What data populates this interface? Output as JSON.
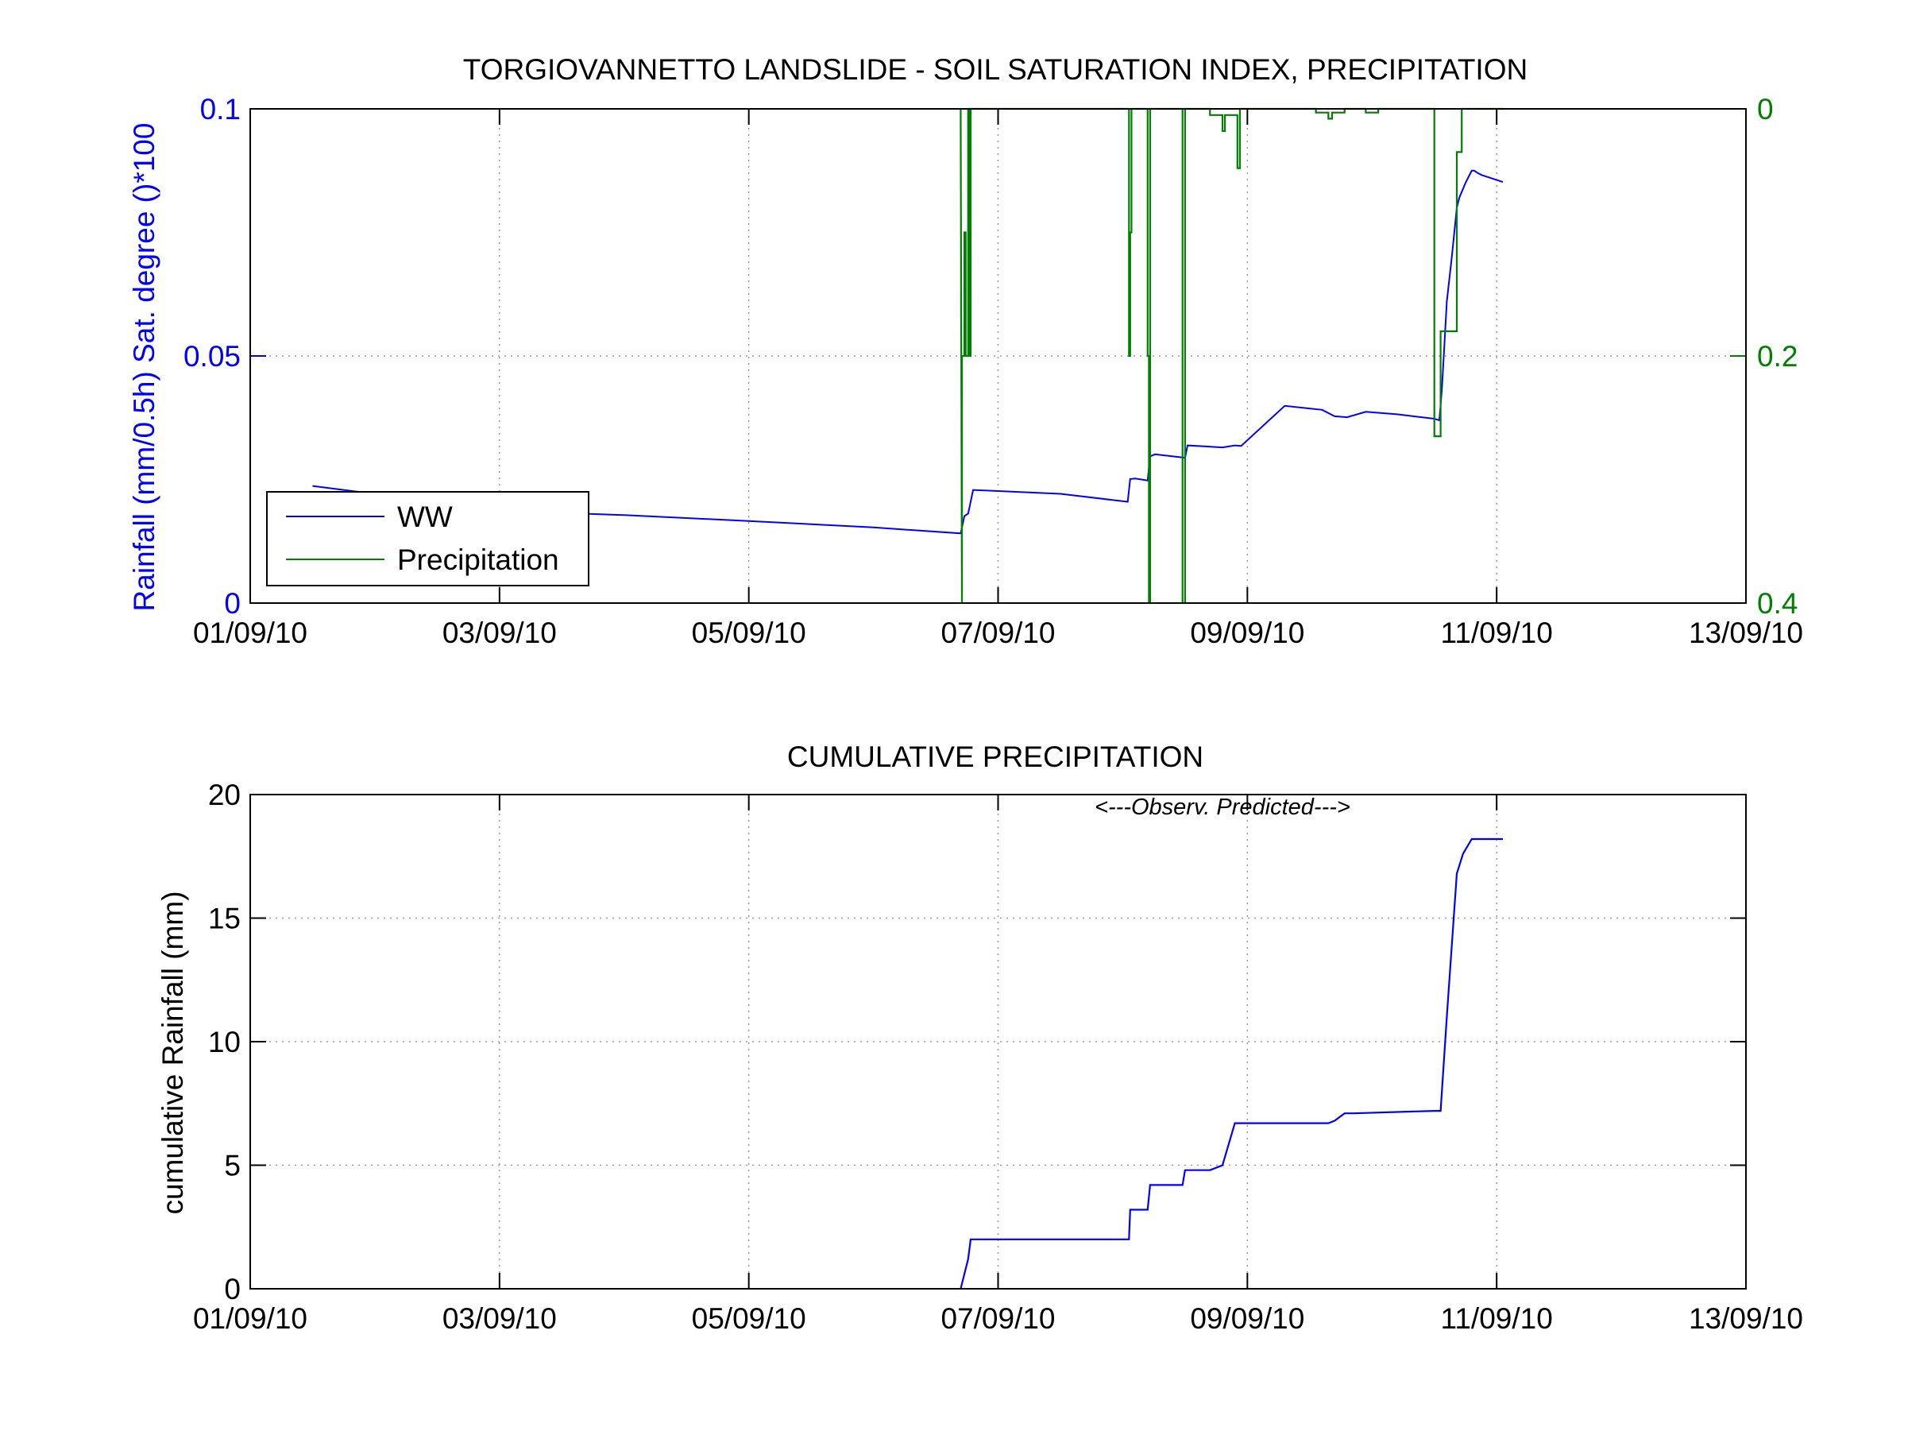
{
  "colors": {
    "ww": "#0000ff",
    "precipitation": "#007f00",
    "axis": "#000000"
  },
  "chart_data": [
    {
      "type": "line",
      "title": "TORGIOVANNETTO LANDSLIDE - SOIL SATURATION INDEX, PRECIPITATION",
      "xlabel": "",
      "ylabel": "Rainfall (mm/0.5h) Sat. degree ()*100",
      "xlim": [
        0,
        12
      ],
      "x_ticks": [
        "01/09/10",
        "03/09/10",
        "05/09/10",
        "07/09/10",
        "09/09/10",
        "11/09/10",
        "13/09/10"
      ],
      "x_tick_days": [
        0,
        2,
        4,
        6,
        8,
        10,
        12
      ],
      "y_ticks_left": [
        "0",
        "0.05",
        "0.1"
      ],
      "ylim_left": [
        0,
        0.1
      ],
      "y_ticks_right": [
        "0",
        "0.2",
        "0.4"
      ],
      "ylim_right": [
        0.4,
        0
      ],
      "grid": true,
      "legend": {
        "location": "lower-left",
        "entries": [
          "WW",
          "Precipitation"
        ]
      },
      "series": [
        {
          "name": "WW",
          "axis": "left",
          "x": [
            0.5,
            1.4,
            2.0,
            3.0,
            4.0,
            5.0,
            5.7,
            5.73,
            5.76,
            5.8,
            6.5,
            7.04,
            7.06,
            7.1,
            7.2,
            7.22,
            7.26,
            7.5,
            7.52,
            7.8,
            7.9,
            7.95,
            8.3,
            8.6,
            8.7,
            8.8,
            8.95,
            9.2,
            9.3,
            9.5,
            9.54,
            9.56,
            9.58,
            9.6,
            9.64,
            9.68,
            9.7,
            9.75,
            9.8,
            9.82,
            9.85,
            9.88,
            10.05
          ],
          "y": [
            0.0237,
            0.0208,
            0.0187,
            0.0178,
            0.0166,
            0.0153,
            0.0141,
            0.0176,
            0.0181,
            0.0229,
            0.0221,
            0.0205,
            0.0251,
            0.0252,
            0.0248,
            0.0297,
            0.0301,
            0.0294,
            0.0319,
            0.0315,
            0.0319,
            0.0318,
            0.0399,
            0.0391,
            0.0378,
            0.0376,
            0.0387,
            0.0382,
            0.0379,
            0.0373,
            0.037,
            0.043,
            0.052,
            0.061,
            0.07,
            0.08,
            0.082,
            0.085,
            0.0875,
            0.0875,
            0.087,
            0.0866,
            0.0852
          ]
        },
        {
          "name": "Precipitation",
          "axis": "right",
          "x": [
            5.7,
            5.71,
            5.71,
            5.73,
            5.73,
            5.74,
            5.74,
            5.76,
            5.76,
            5.77,
            5.77,
            5.78,
            5.78,
            7.05,
            7.05,
            7.06,
            7.06,
            7.07,
            7.07,
            7.2,
            7.2,
            7.21,
            7.21,
            7.22,
            7.22,
            7.48,
            7.48,
            7.5,
            7.5,
            7.7,
            7.7,
            7.8,
            7.8,
            7.82,
            7.82,
            7.92,
            7.92,
            7.94,
            7.94,
            8.55,
            8.55,
            8.65,
            8.65,
            8.68,
            8.68,
            8.78,
            8.78,
            8.95,
            8.95,
            9.05,
            9.05,
            9.5,
            9.5,
            9.55,
            9.55,
            9.68,
            9.68,
            9.72,
            9.72,
            9.78,
            9.78,
            9.9,
            9.9,
            10.05
          ],
          "y": [
            0,
            0.4,
            0.2,
            0.2,
            0.1,
            0.1,
            0.2,
            0.2,
            0,
            0,
            0.2,
            0.2,
            0,
            0,
            0.2,
            0.2,
            0.1,
            0.1,
            0,
            0,
            0.2,
            0.2,
            0.4,
            0.4,
            0,
            0,
            0.4,
            0.4,
            0,
            0,
            0.005,
            0.005,
            0.018,
            0.018,
            0.005,
            0.005,
            0.048,
            0.048,
            0,
            0,
            0.003,
            0.003,
            0.008,
            0.008,
            0.003,
            0.003,
            0,
            0,
            0.003,
            0.003,
            0,
            0,
            0.265,
            0.265,
            0.18,
            0.18,
            0.035,
            0.035,
            0,
            0,
            0,
            0,
            0,
            0
          ]
        }
      ]
    },
    {
      "type": "line",
      "title": "CUMULATIVE PRECIPITATION",
      "xlabel": "",
      "ylabel": "cumulative Rainfall (mm)",
      "xlim": [
        0,
        12
      ],
      "x_ticks": [
        "01/09/10",
        "03/09/10",
        "05/09/10",
        "07/09/10",
        "09/09/10",
        "11/09/10",
        "13/09/10"
      ],
      "x_tick_days": [
        0,
        2,
        4,
        6,
        8,
        10,
        12
      ],
      "y_ticks": [
        "0",
        "5",
        "10",
        "15",
        "20"
      ],
      "ylim": [
        0,
        20
      ],
      "grid": true,
      "annotation": "<---Observ. Predicted--->",
      "annotation_x": 7.8,
      "annotation_y": 19.2,
      "series": [
        {
          "name": "",
          "x": [
            5.7,
            5.73,
            5.76,
            5.78,
            7.05,
            7.06,
            7.2,
            7.22,
            7.48,
            7.5,
            7.7,
            7.8,
            7.9,
            8.65,
            8.7,
            8.78,
            8.85,
            9.5,
            9.55,
            9.6,
            9.68,
            9.73,
            9.8,
            10.05
          ],
          "y": [
            0,
            0.6,
            1.2,
            2.0,
            2.0,
            3.2,
            3.2,
            4.2,
            4.2,
            4.8,
            4.8,
            5.0,
            6.7,
            6.7,
            6.8,
            7.1,
            7.1,
            7.2,
            7.2,
            11.0,
            16.8,
            17.6,
            18.2,
            18.2
          ]
        }
      ]
    }
  ]
}
